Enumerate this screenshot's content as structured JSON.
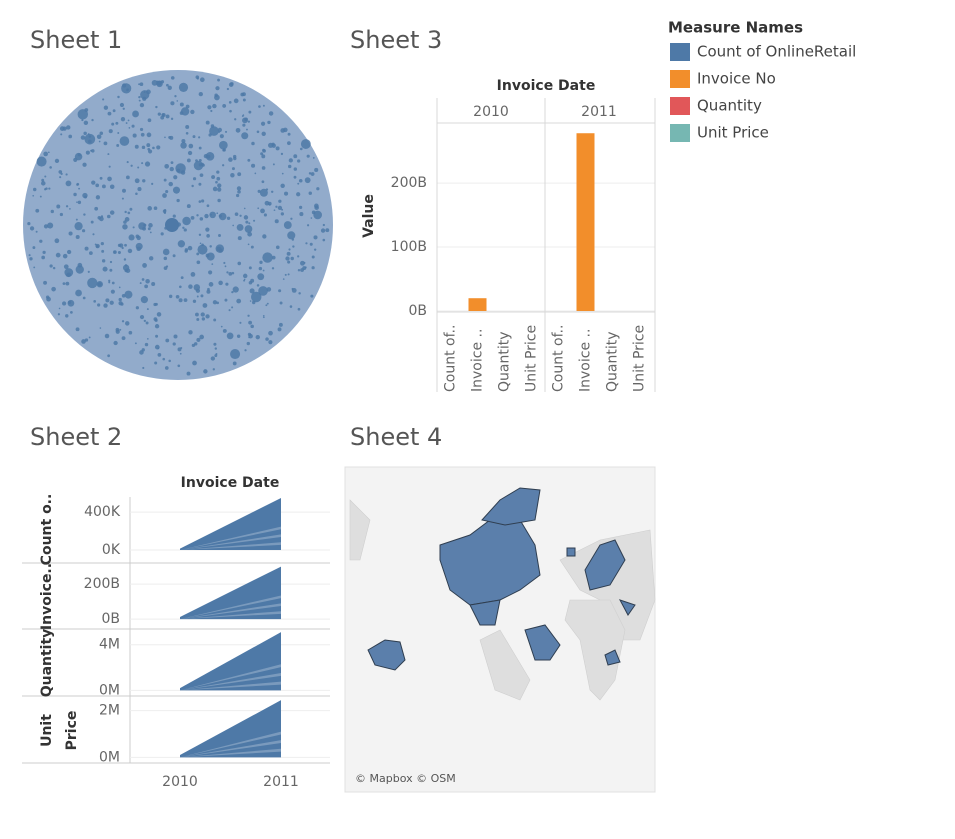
{
  "legend": {
    "title": "Measure Names",
    "items": [
      {
        "name": "Count of OnlineRetail",
        "color": "#4e79a7"
      },
      {
        "name": "Invoice No",
        "color": "#f28e2b"
      },
      {
        "name": "Quantity",
        "color": "#e15759"
      },
      {
        "name": "Unit Price",
        "color": "#76b7b2"
      }
    ]
  },
  "chart_data": [
    {
      "type": "packed-bubble",
      "title": "Sheet 1"
    },
    {
      "type": "bar",
      "title": "Sheet 3",
      "column_header": "Invoice Date",
      "y_label": "Value",
      "categories": [
        "Count of..",
        "Invoice ..",
        "Quantity",
        "Unit Price"
      ],
      "series": [
        {
          "name": "2010",
          "values": [
            0,
            20000000000,
            0,
            0
          ]
        },
        {
          "name": "2011",
          "values": [
            0,
            278000000000,
            0,
            0
          ]
        }
      ],
      "ylim": [
        0,
        294000000000
      ],
      "yticks": [
        {
          "value": 0,
          "label": "0B"
        },
        {
          "value": 100000000000,
          "label": "100B"
        },
        {
          "value": 200000000000,
          "label": "200B"
        }
      ],
      "grid": true
    },
    {
      "type": "area",
      "title": "Sheet 2",
      "column_header": "Invoice Date",
      "color": "#4e79a7",
      "categories": [
        "2010",
        "2011"
      ],
      "rows": [
        {
          "label": "Count o..",
          "values": [
            15000,
            550000
          ],
          "ylim": [
            -126000,
            560000
          ],
          "yticks": [
            {
              "value": 0,
              "label": "0K"
            },
            {
              "value": 400000,
              "label": "400K"
            }
          ]
        },
        {
          "label": "Invoice..",
          "values": [
            12000000000,
            300000000000
          ],
          "ylim": [
            -51000000000,
            309000000000
          ],
          "yticks": [
            {
              "value": 0,
              "label": "0B"
            },
            {
              "value": 200000000000,
              "label": "200B"
            }
          ]
        },
        {
          "label": "Quantity",
          "values": [
            200000,
            5100000
          ],
          "ylim": [
            -400000,
            5200000
          ],
          "yticks": [
            {
              "value": 0,
              "label": "0M"
            },
            {
              "value": 4000000,
              "label": "4M"
            }
          ]
        },
        {
          "label": [
            "Unit",
            "Price"
          ],
          "values": [
            100000,
            2450000
          ],
          "ylim": [
            -200000,
            2500000
          ],
          "yticks": [
            {
              "value": 0,
              "label": "0M"
            },
            {
              "value": 2000000,
              "label": "2M"
            }
          ]
        }
      ]
    },
    {
      "type": "map",
      "title": "Sheet 4",
      "attribution": "© Mapbox © OSM"
    }
  ]
}
